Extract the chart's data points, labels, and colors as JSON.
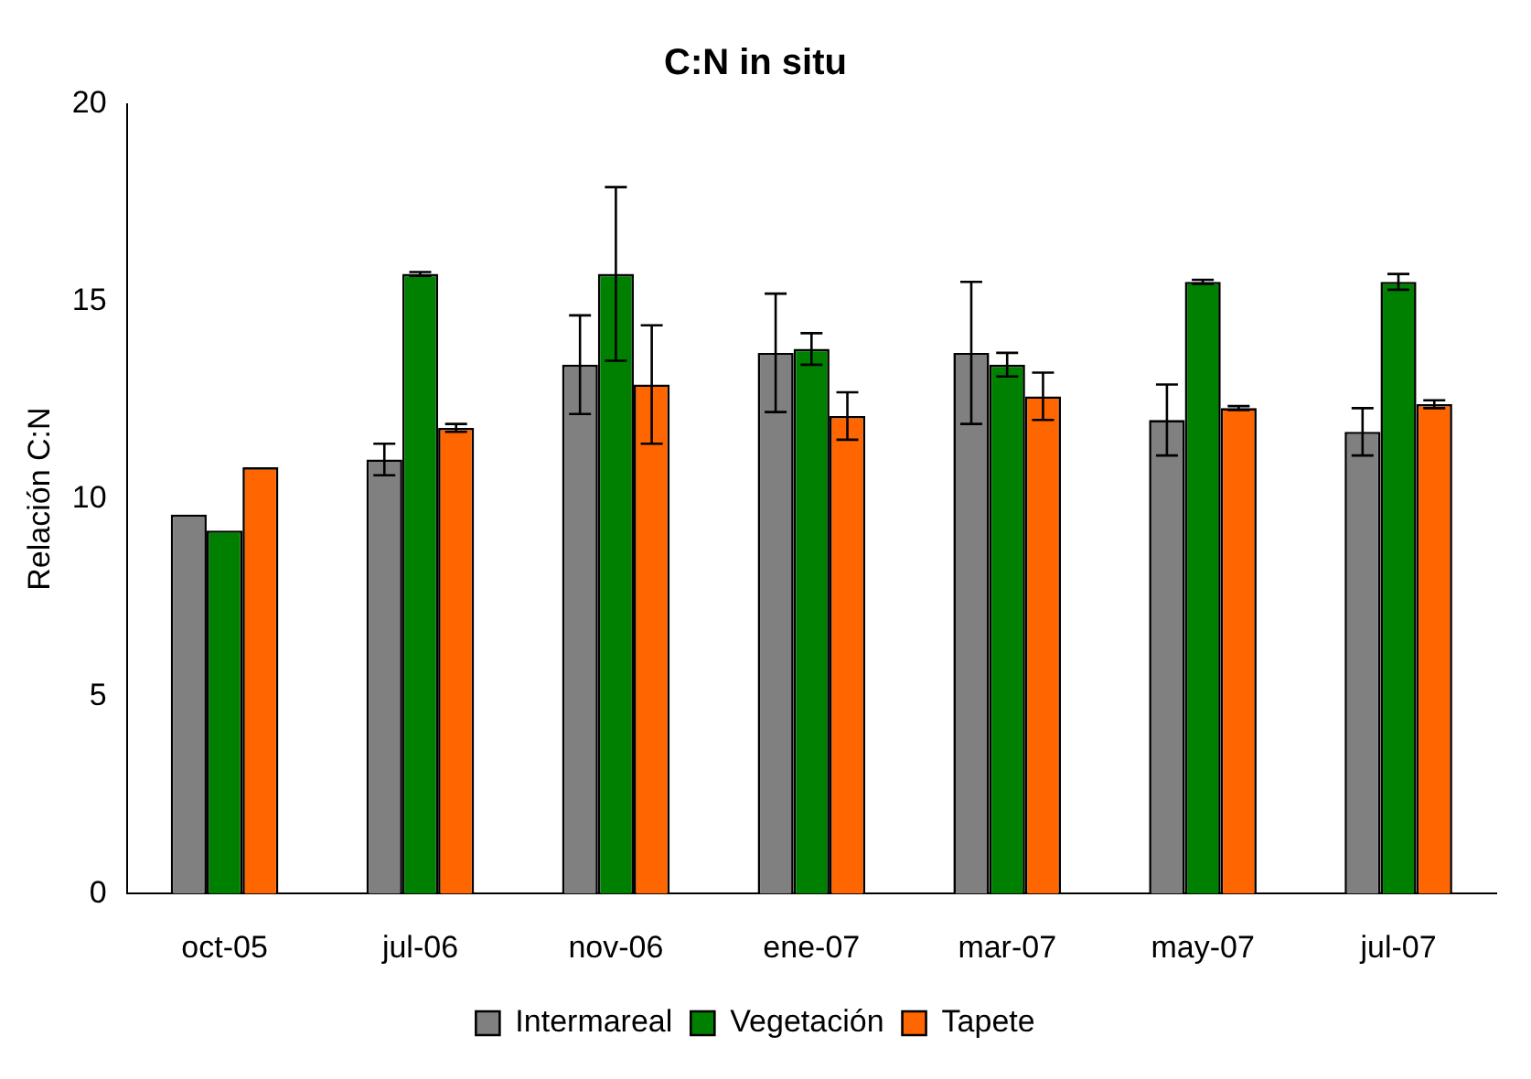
{
  "chart_data": {
    "type": "bar",
    "title": "C:N in situ",
    "ylabel": "Relación C:N",
    "categories": [
      "oct-05",
      "jul-06",
      "nov-06",
      "ene-07",
      "mar-07",
      "may-07",
      "jul-07"
    ],
    "series": [
      {
        "name": "Intermareal",
        "color": "#808080",
        "values": [
          9.6,
          11.0,
          13.4,
          13.7,
          13.7,
          12.0,
          11.7
        ],
        "errors": [
          null,
          0.4,
          1.25,
          1.5,
          1.8,
          0.9,
          0.6
        ]
      },
      {
        "name": "Vegetación",
        "color": "#008000",
        "values": [
          9.2,
          15.7,
          15.7,
          13.8,
          13.4,
          15.5,
          15.5
        ],
        "errors": [
          null,
          0.05,
          2.2,
          0.4,
          0.3,
          0.05,
          0.2
        ]
      },
      {
        "name": "Tapete",
        "color": "#ff6600",
        "values": [
          10.8,
          11.8,
          12.9,
          12.1,
          12.6,
          12.3,
          12.4
        ],
        "errors": [
          null,
          0.1,
          1.5,
          0.6,
          0.6,
          0.05,
          0.1
        ]
      }
    ],
    "ylim": [
      0,
      20
    ],
    "yticks": [
      0,
      5,
      10,
      15,
      20
    ],
    "grid": false,
    "legend": "bottom"
  }
}
